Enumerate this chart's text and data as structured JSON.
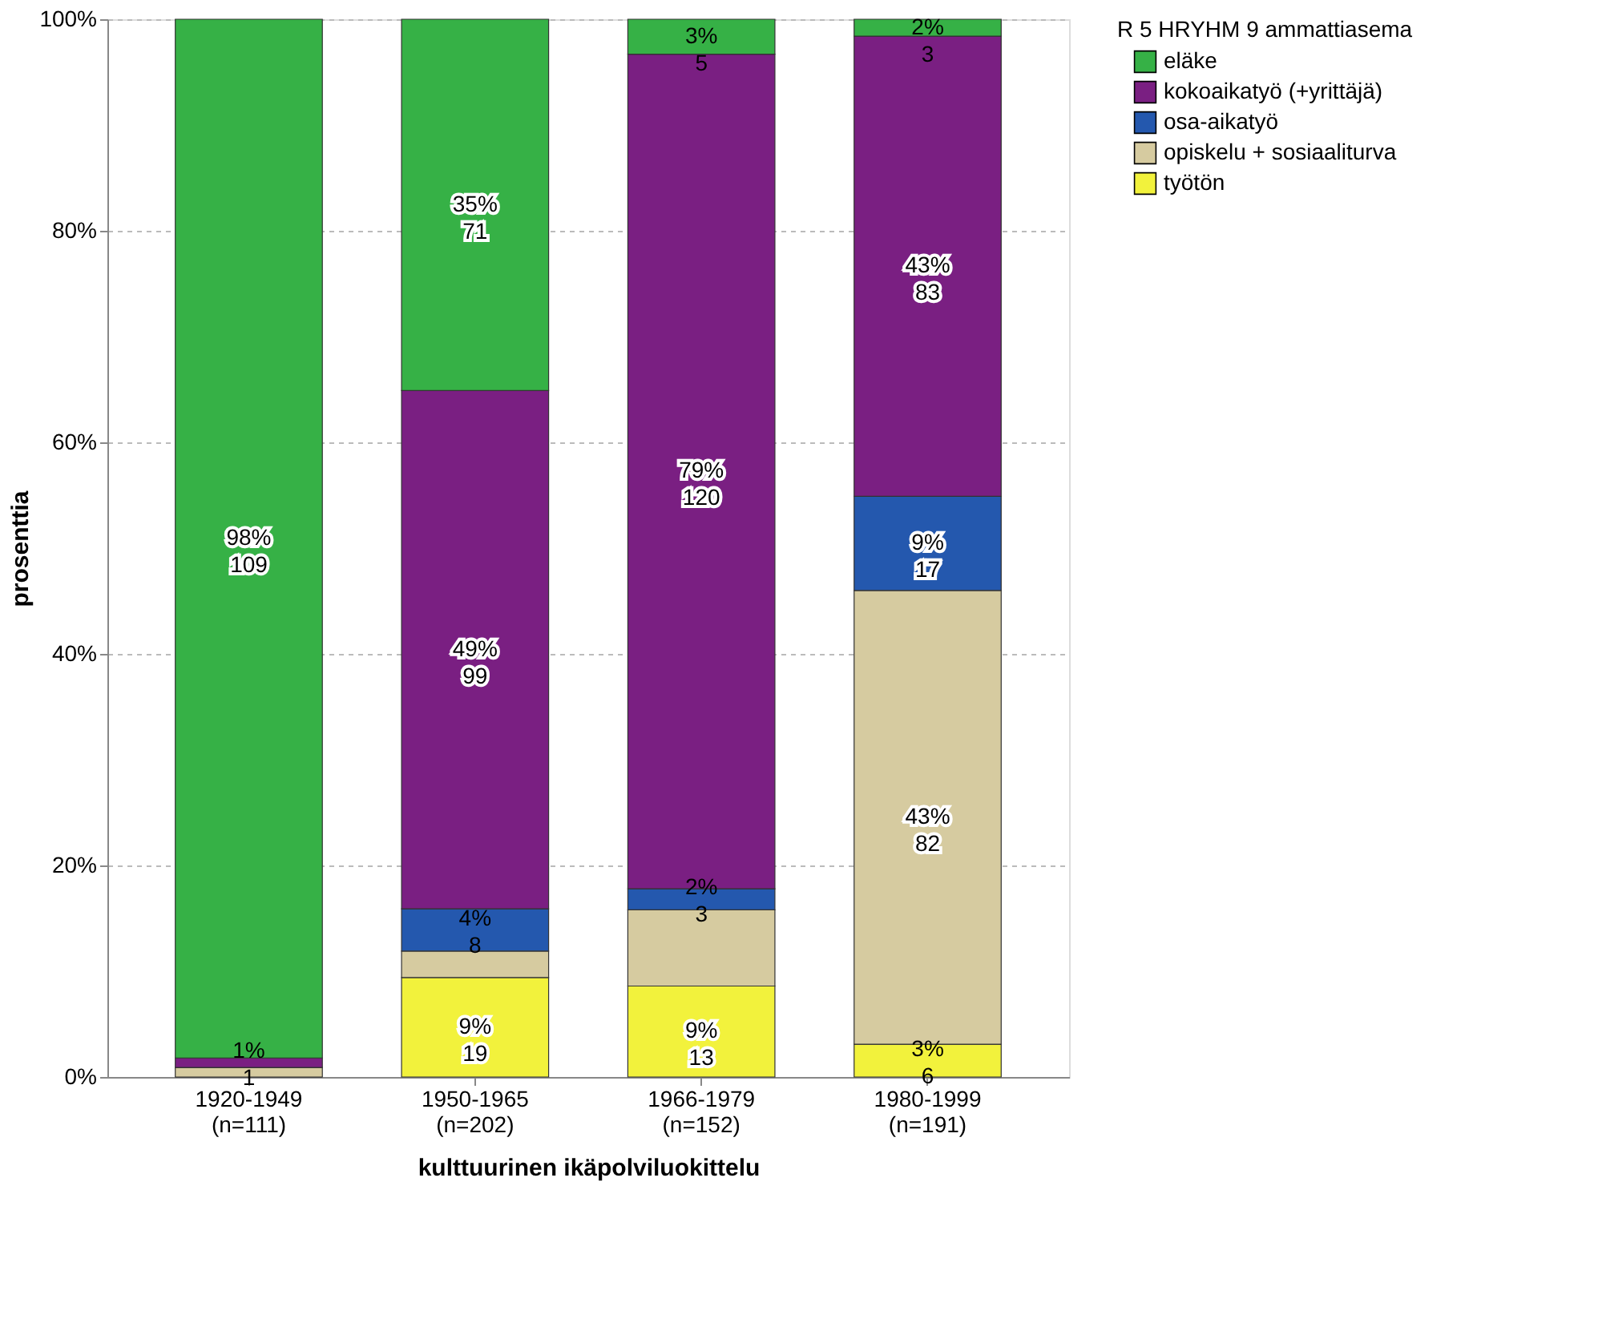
{
  "chart_data": {
    "type": "bar",
    "stacked": true,
    "xlabel": "kulttuurinen ikäpolviluokittelu",
    "ylabel": "prosenttia",
    "legend_title": "R 5 HRYHM 9 ammattiasema",
    "legend": "top right",
    "grid": "y",
    "categories": [
      "1920-1949 (n=111)",
      "1950-1965 (n=202)",
      "1966-1979 (n=152)",
      "1980-1999 (n=191)"
    ],
    "ylim": [
      0,
      100
    ],
    "yticks": [
      {
        "value": 0,
        "label": "0%"
      },
      {
        "value": 20,
        "label": "20%"
      },
      {
        "value": 40,
        "label": "40%"
      },
      {
        "value": 60,
        "label": "60%"
      },
      {
        "value": 80,
        "label": "80%"
      },
      {
        "value": 100,
        "label": "100%"
      }
    ],
    "series": [
      {
        "name": "työtön",
        "color": "#f2f23c",
        "values": [
          0,
          9.4,
          8.6,
          3.1
        ],
        "value_labels": [
          null,
          "9%\n19",
          "9%\n13",
          "3%\n6"
        ]
      },
      {
        "name": "opiskelu + sosiaaliturva",
        "color": "#d6cba0",
        "values": [
          0.9,
          2.5,
          7.2,
          42.9
        ],
        "value_labels": [
          null,
          null,
          null,
          "43%\n82"
        ]
      },
      {
        "name": "osa-aikatyö",
        "color": "#2458ae",
        "values": [
          0,
          4.0,
          2.0,
          8.9
        ],
        "value_labels": [
          null,
          "4%\n8",
          "2%\n3",
          "9%\n17"
        ]
      },
      {
        "name": "kokoaikatyö (+yrittäjä)",
        "color": "#7a1f82",
        "values": [
          0.9,
          49.0,
          78.9,
          43.5
        ],
        "value_labels": [
          "1%\n1",
          "49%\n99",
          "79%\n120",
          "43%\n83"
        ]
      },
      {
        "name": "eläke",
        "color": "#36b146",
        "values": [
          98.2,
          35.1,
          3.3,
          1.6
        ],
        "value_labels": [
          "98%\n109",
          "35%\n71",
          "3%\n5",
          "2%\n3"
        ]
      }
    ]
  }
}
